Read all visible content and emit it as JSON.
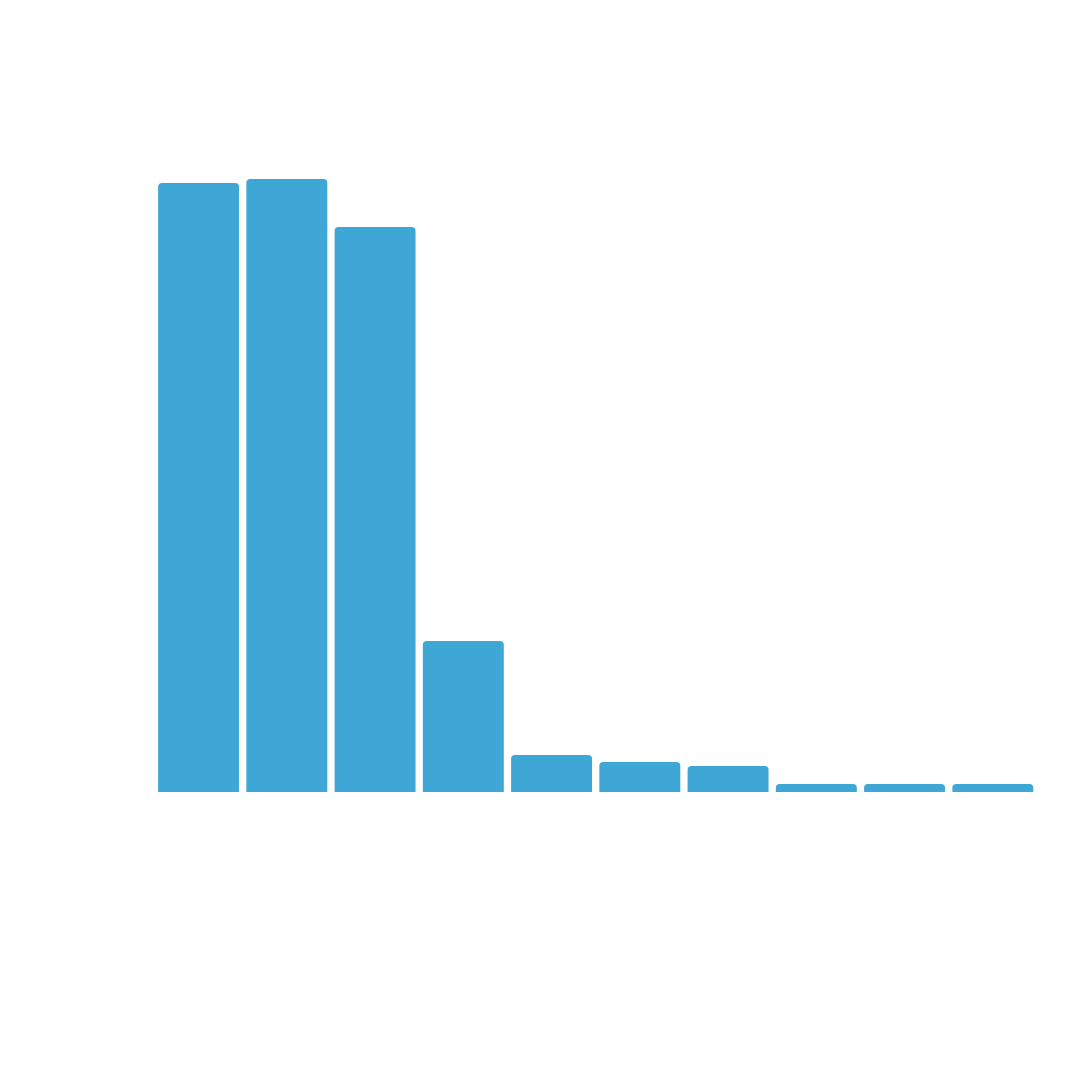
{
  "chart_data": {
    "type": "bar",
    "values": [
      609,
      613,
      565,
      151,
      37,
      30,
      26,
      8,
      8,
      8
    ],
    "color": "#3fa7d6"
  }
}
